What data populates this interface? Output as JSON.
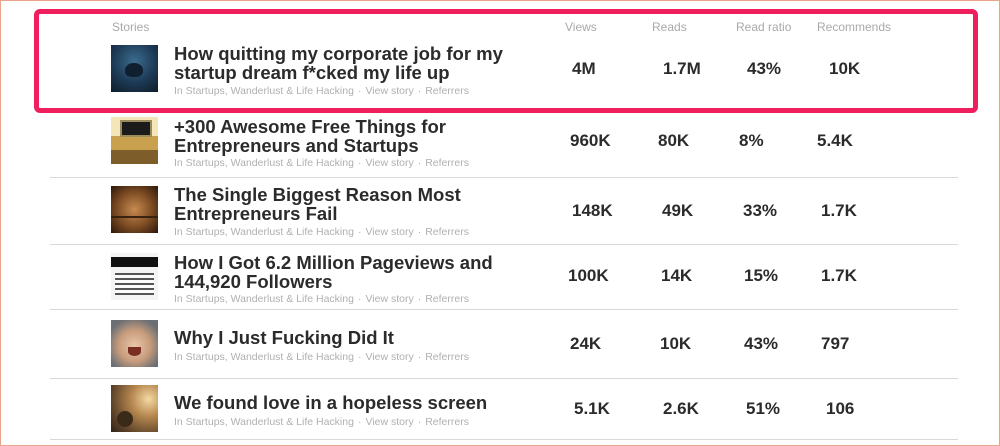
{
  "columns": {
    "stories": "Stories",
    "views": "Views",
    "reads": "Reads",
    "read_ratio": "Read ratio",
    "recommends": "Recommends"
  },
  "meta_labels": {
    "view_story": "View story",
    "referrers": "Referrers",
    "separator": "·"
  },
  "stories": [
    {
      "title_line1": "How quitting my corporate job for my",
      "title_line2": "startup dream f*cked my life up",
      "publication": "In Startups, Wanderlust & Life Hacking",
      "views": "4M",
      "reads": "1.7M",
      "read_ratio": "43%",
      "recommends": "10K",
      "thumbnail": "night-water-photo",
      "highlighted": true
    },
    {
      "title_line1": "+300 Awesome Free Things for",
      "title_line2": "Entrepreneurs and Startups",
      "publication": "In Startups, Wanderlust & Life Hacking",
      "views": "960K",
      "reads": "80K",
      "read_ratio": "8%",
      "recommends": "5.4K",
      "thumbnail": "desk-laptop-photo"
    },
    {
      "title_line1": "The Single Biggest Reason Most",
      "title_line2": "Entrepreneurs Fail",
      "publication": "In Startups, Wanderlust & Life Hacking",
      "views": "148K",
      "reads": "49K",
      "read_ratio": "33%",
      "recommends": "1.7K",
      "thumbnail": "wooden-room-photo"
    },
    {
      "title_line1": "How I Got 6.2 Million Pageviews and",
      "title_line2": "144,920 Followers",
      "publication": "In Startups, Wanderlust & Life Hacking",
      "views": "100K",
      "reads": "14K",
      "read_ratio": "15%",
      "recommends": "1.7K",
      "thumbnail": "stats-screenshot"
    },
    {
      "title_line1": "Why I Just Fucking Did It",
      "title_line2": "",
      "publication": "In Startups, Wanderlust & Life Hacking",
      "views": "24K",
      "reads": "10K",
      "read_ratio": "43%",
      "recommends": "797",
      "thumbnail": "shouting-face-photo"
    },
    {
      "title_line1": "We found love in a hopeless screen",
      "title_line2": "",
      "publication": "In Startups, Wanderlust & Life Hacking",
      "views": "5.1K",
      "reads": "2.6K",
      "read_ratio": "51%",
      "recommends": "106",
      "thumbnail": "sunset-couple-photo"
    }
  ],
  "colors": {
    "highlight_border": "#ee1f5c",
    "header_text": "#a9a9a9",
    "meta_text": "#b0b0b0",
    "title_text": "#2b2b2b",
    "divider": "#d9d9d9"
  }
}
